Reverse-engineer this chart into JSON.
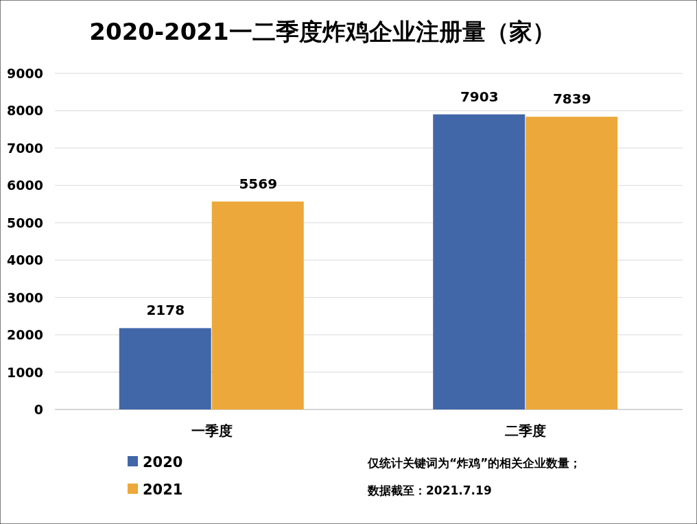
{
  "chart_data": {
    "type": "bar",
    "title": "2020-2021一二季度炸鸡企业注册量（家）",
    "categories": [
      "一季度",
      "二季度"
    ],
    "series": [
      {
        "name": "2020",
        "color": "#4167a8",
        "values": [
          2178,
          7903
        ]
      },
      {
        "name": "2021",
        "color": "#eca83a",
        "values": [
          5569,
          7839
        ]
      }
    ],
    "ylim": [
      0,
      9000
    ],
    "yticks": [
      0,
      1000,
      2000,
      3000,
      4000,
      5000,
      6000,
      7000,
      8000,
      9000
    ],
    "grid": "y",
    "legend": "bottom left",
    "data_labels": true,
    "annotations": [
      "仅统计关键词为“炸鸡”的相关企业数量；",
      "数据截至：2021.7.19"
    ]
  }
}
